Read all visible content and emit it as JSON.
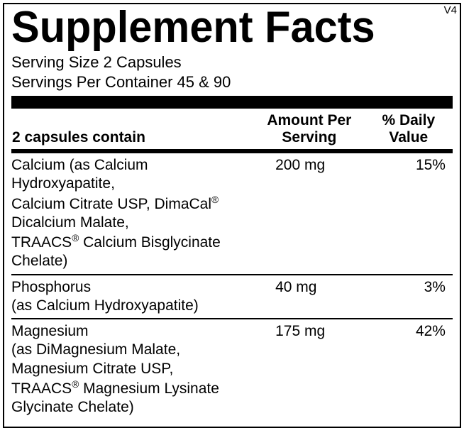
{
  "version": "V4",
  "title": "Supplement Facts",
  "serving_size_label": "Serving Size 2 Capsules",
  "servings_per_container_label": "Servings Per Container 45 & 90",
  "header": {
    "col1": "2 capsules contain",
    "col2_line1": "Amount Per",
    "col2_line2": "Serving",
    "col3_line1": "% Daily",
    "col3_line2": "Value"
  },
  "rows": [
    {
      "name_line1": "Calcium (as Calcium Hydroxyapatite,",
      "name_line2": "Calcium Citrate USP, DimaCal",
      "name_line2_after": " Dicalcium Malate,",
      "name_line3": "TRAACS",
      "name_line3_after": " Calcium Bisglycinate Chelate)",
      "amount": "200 mg",
      "dv": "15%"
    },
    {
      "name_line1": "Phosphorus",
      "name_line2": "(as Calcium Hydroxyapatite)",
      "amount": "40 mg",
      "dv": "3%"
    },
    {
      "name_line1": "Magnesium",
      "name_line2": "(as DiMagnesium Malate, Magnesium Citrate USP,",
      "name_line3": "TRAACS",
      "name_line3_after": " Magnesium Lysinate Glycinate Chelate)",
      "amount": "175 mg",
      "dv": "42%"
    }
  ],
  "registered": "®"
}
